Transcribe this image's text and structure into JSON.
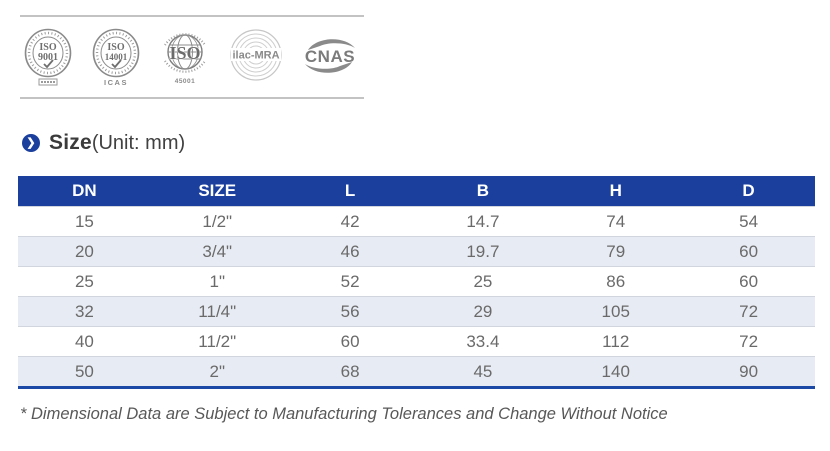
{
  "certifications": {
    "badges": [
      {
        "name": "iso-9001-seal",
        "line1": "ISO",
        "line2": "9001"
      },
      {
        "name": "iso-14001-seal",
        "line1": "ISO",
        "line2": "14001",
        "sub": "ICAS"
      },
      {
        "name": "iso-45001-globe",
        "line1": "ISO",
        "sub": "45001"
      },
      {
        "name": "ilac-mra-seal",
        "label": "ilac-MRA"
      },
      {
        "name": "cnas-logo",
        "label": "CNAS"
      }
    ]
  },
  "section": {
    "title": "Size",
    "unit_suffix": "(Unit: mm)"
  },
  "table": {
    "headers": [
      "DN",
      "SIZE",
      "L",
      "B",
      "H",
      "D"
    ],
    "rows": [
      [
        "15",
        "1/2\"",
        "42",
        "14.7",
        "74",
        "54"
      ],
      [
        "20",
        "3/4\"",
        "46",
        "19.7",
        "79",
        "60"
      ],
      [
        "25",
        "1\"",
        "52",
        "25",
        "86",
        "60"
      ],
      [
        "32",
        "11/4\"",
        "56",
        "29",
        "105",
        "72"
      ],
      [
        "40",
        "11/2\"",
        "60",
        "33.4",
        "112",
        "72"
      ],
      [
        "50",
        "2\"",
        "68",
        "45",
        "140",
        "90"
      ]
    ]
  },
  "footnote": "* Dimensional Data are Subject to Manufacturing Tolerances and Change Without Notice",
  "colors": {
    "accent_blue": "#1a3f9c",
    "row_alt": "#e7ebf3",
    "row_border": "#d0d5de",
    "table_bottom_border": "#1c49a5",
    "body_text": "#6a6a6a",
    "badge_gray": "#8a8a8a"
  }
}
